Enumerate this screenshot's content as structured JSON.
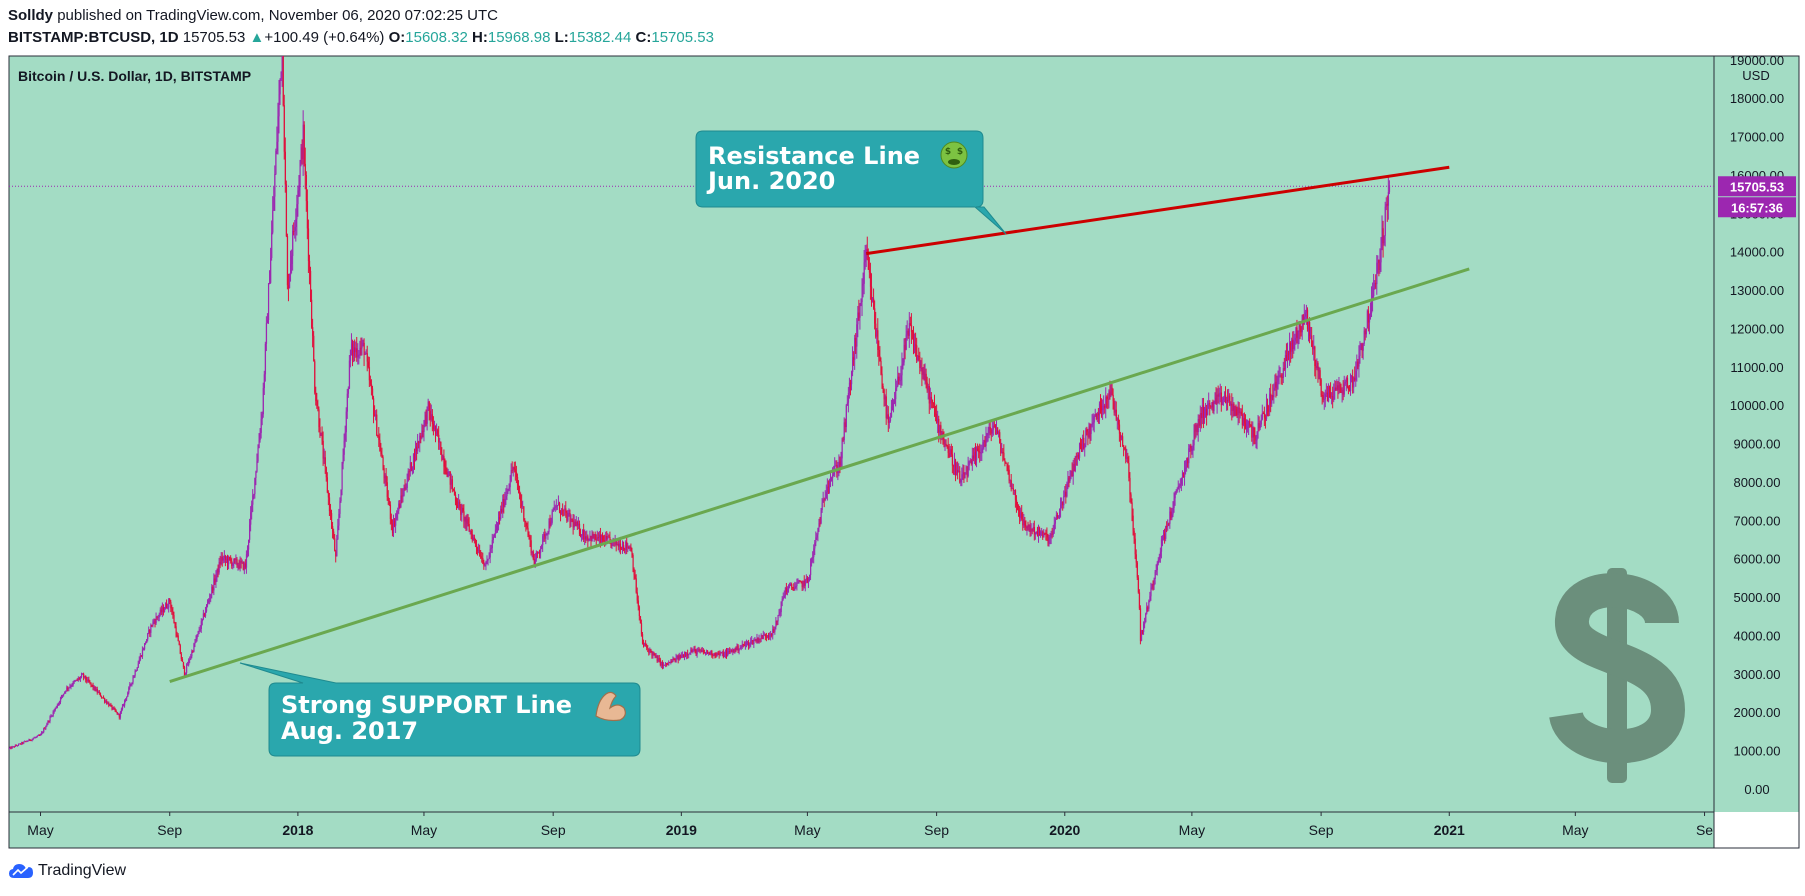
{
  "header": {
    "author": "Solldy",
    "published_text": "published on TradingView.com, November 06, 2020 07:02:25 UTC",
    "symbol": "BITSTAMP:BTCUSD, 1D",
    "last": "15705.53",
    "change_arrow": "▲",
    "change": "+100.49 (+0.64%)",
    "o_label": "O:",
    "o_value": "15608.32",
    "h_label": "H:",
    "h_value": "15968.98",
    "l_label": "L:",
    "l_value": "15382.44",
    "c_label": "C:",
    "c_value": "15705.53"
  },
  "footer": {
    "brand": "TradingView"
  },
  "colors": {
    "plot_bg": "#a3dcc4",
    "up_candle": "#9c27b0",
    "down_candle": "#e0103c",
    "support": "#6aa84f",
    "resistance": "#cc0000",
    "callout": "#2aa7ad",
    "price_tag": "#9c27b0",
    "dollar": "#6b8f7c"
  },
  "chart_data": {
    "type": "candlestick",
    "title": "Bitcoin / U.S. Dollar, 1D, BITSTAMP",
    "ylabel": "USD",
    "y_ticks": [
      "19000.00",
      "18000.00",
      "17000.00",
      "16000.00",
      "15000.00",
      "14000.00",
      "13000.00",
      "12000.00",
      "11000.00",
      "10000.00",
      "9000.00",
      "8000.00",
      "7000.00",
      "6000.00",
      "5000.00",
      "4000.00",
      "3000.00",
      "2000.00",
      "1000.00",
      "0.00"
    ],
    "x_ticks": [
      {
        "date": "2017-05-01",
        "label": "May",
        "bold": false
      },
      {
        "date": "2017-09-01",
        "label": "Sep",
        "bold": false
      },
      {
        "date": "2018-01-01",
        "label": "2018",
        "bold": true
      },
      {
        "date": "2018-05-01",
        "label": "May",
        "bold": false
      },
      {
        "date": "2018-09-01",
        "label": "Sep",
        "bold": false
      },
      {
        "date": "2019-01-01",
        "label": "2019",
        "bold": true
      },
      {
        "date": "2019-05-01",
        "label": "May",
        "bold": false
      },
      {
        "date": "2019-09-01",
        "label": "Sep",
        "bold": false
      },
      {
        "date": "2020-01-01",
        "label": "2020",
        "bold": true
      },
      {
        "date": "2020-05-01",
        "label": "May",
        "bold": false
      },
      {
        "date": "2020-09-01",
        "label": "Sep",
        "bold": false
      },
      {
        "date": "2021-01-01",
        "label": "2021",
        "bold": true
      },
      {
        "date": "2021-05-01",
        "label": "May",
        "bold": false
      },
      {
        "date": "2021-09-01",
        "label": "Se",
        "bold": false
      }
    ],
    "x_range": [
      "2017-04-01",
      "2021-09-10"
    ],
    "y_range": [
      -600,
      19100
    ],
    "price_series": [
      [
        "2017-04-01",
        1050
      ],
      [
        "2017-05-01",
        1400
      ],
      [
        "2017-05-25",
        2600
      ],
      [
        "2017-06-10",
        2950
      ],
      [
        "2017-07-15",
        1900
      ],
      [
        "2017-08-15",
        4300
      ],
      [
        "2017-09-01",
        4900
      ],
      [
        "2017-09-15",
        3000
      ],
      [
        "2017-10-01",
        4300
      ],
      [
        "2017-10-20",
        6000
      ],
      [
        "2017-11-12",
        5800
      ],
      [
        "2017-11-28",
        9900
      ],
      [
        "2017-12-17",
        19500
      ],
      [
        "2017-12-22",
        13000
      ],
      [
        "2018-01-06",
        17000
      ],
      [
        "2018-01-17",
        10500
      ],
      [
        "2018-02-06",
        6000
      ],
      [
        "2018-02-20",
        11400
      ],
      [
        "2018-03-05",
        11500
      ],
      [
        "2018-04-01",
        6800
      ],
      [
        "2018-05-05",
        9900
      ],
      [
        "2018-06-01",
        7500
      ],
      [
        "2018-06-29",
        5800
      ],
      [
        "2018-07-25",
        8400
      ],
      [
        "2018-08-14",
        5900
      ],
      [
        "2018-09-04",
        7400
      ],
      [
        "2018-10-01",
        6600
      ],
      [
        "2018-11-14",
        6300
      ],
      [
        "2018-11-25",
        3800
      ],
      [
        "2018-12-15",
        3200
      ],
      [
        "2019-01-10",
        3600
      ],
      [
        "2019-02-10",
        3500
      ],
      [
        "2019-03-30",
        4100
      ],
      [
        "2019-04-10",
        5200
      ],
      [
        "2019-05-01",
        5400
      ],
      [
        "2019-05-20",
        8000
      ],
      [
        "2019-06-01",
        8500
      ],
      [
        "2019-06-26",
        13900
      ],
      [
        "2019-07-17",
        9400
      ],
      [
        "2019-08-06",
        12000
      ],
      [
        "2019-09-01",
        9600
      ],
      [
        "2019-09-24",
        8000
      ],
      [
        "2019-10-26",
        9500
      ],
      [
        "2019-11-22",
        6900
      ],
      [
        "2019-12-18",
        6500
      ],
      [
        "2020-01-14",
        8800
      ],
      [
        "2020-02-13",
        10400
      ],
      [
        "2020-03-01",
        8500
      ],
      [
        "2020-03-12",
        4800
      ],
      [
        "2020-03-13",
        3900
      ],
      [
        "2020-04-01",
        6300
      ],
      [
        "2020-04-29",
        8800
      ],
      [
        "2020-05-10",
        9800
      ],
      [
        "2020-06-01",
        10200
      ],
      [
        "2020-07-01",
        9200
      ],
      [
        "2020-07-27",
        11000
      ],
      [
        "2020-08-17",
        12400
      ],
      [
        "2020-09-03",
        10200
      ],
      [
        "2020-10-01",
        10600
      ],
      [
        "2020-10-21",
        12900
      ],
      [
        "2020-11-05",
        15600
      ]
    ],
    "support_line": {
      "start": [
        "2017-09-01",
        2800
      ],
      "end": [
        "2021-01-20",
        13550
      ]
    },
    "resistance_line": {
      "start": [
        "2019-06-26",
        13950
      ],
      "end": [
        "2021-01-01",
        16200
      ]
    },
    "last_price_label": "15705.53",
    "countdown_label": "16:57:36",
    "last_price_value": 15705.53
  },
  "callouts": {
    "resistance": {
      "line1": "Resistance Line",
      "line2": "Jun. 2020"
    },
    "support": {
      "line1": "Strong SUPPORT Line",
      "line2": "Aug. 2017"
    }
  }
}
